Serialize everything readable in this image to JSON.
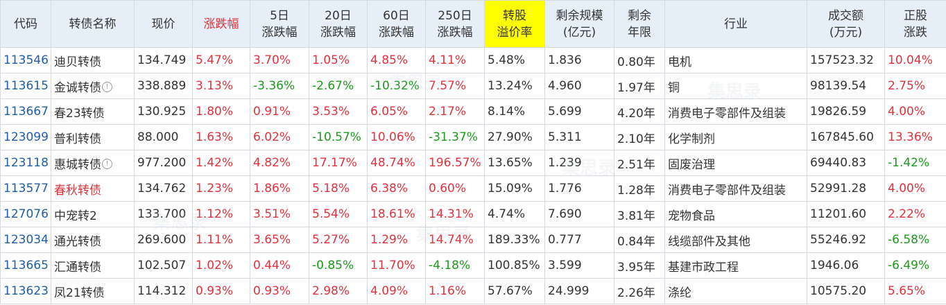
{
  "header": {
    "code": "代码",
    "name": "转债名称",
    "price": "现价",
    "change": "涨跌幅",
    "d5": [
      "5日",
      "涨跌幅"
    ],
    "d20": [
      "20日",
      "涨跌幅"
    ],
    "d60": [
      "60日",
      "涨跌幅"
    ],
    "d250": [
      "250日",
      "涨跌幅"
    ],
    "premium": [
      "转股",
      "溢价率"
    ],
    "remain_size": [
      "剩余规模",
      "(亿元)"
    ],
    "remain_years": [
      "剩余",
      "年限"
    ],
    "industry": "行业",
    "turnover": [
      "成交额",
      "(万元)"
    ],
    "stock_change": [
      "正股",
      "涨跌"
    ]
  },
  "colors": {
    "up": "#e3313c",
    "down": "#1b9a1b",
    "code": "#1f5da8",
    "highlight": "#ffff00",
    "header_bg": "#e6eef8"
  },
  "watermark": "集思录",
  "rows": [
    {
      "code": "113546",
      "name": "迪贝转债",
      "info": false,
      "name_red": false,
      "price": "134.749",
      "change": "5.47%",
      "d5": "3.70%",
      "d20": "1.05%",
      "d60": "4.85%",
      "d250": "4.11%",
      "premium": "5.48%",
      "remain_size": "1.836",
      "remain_years": "0.80年",
      "industry": "电机",
      "turnover": "157523.32",
      "stock_change": "10.04%"
    },
    {
      "code": "113615",
      "name": "金诚转债",
      "info": true,
      "name_red": false,
      "price": "338.889",
      "change": "3.13%",
      "d5": "-3.36%",
      "d20": "-2.67%",
      "d60": "-10.32%",
      "d250": "7.57%",
      "premium": "13.24%",
      "remain_size": "4.960",
      "remain_years": "1.97年",
      "industry": "铜",
      "turnover": "98139.54",
      "stock_change": "2.75%"
    },
    {
      "code": "113667",
      "name": "春23转债",
      "info": false,
      "name_red": false,
      "price": "130.925",
      "change": "1.80%",
      "d5": "0.91%",
      "d20": "3.53%",
      "d60": "6.05%",
      "d250": "2.17%",
      "premium": "8.14%",
      "remain_size": "5.699",
      "remain_years": "4.20年",
      "industry": "消费电子零部件及组装",
      "turnover": "19826.59",
      "stock_change": "4.00%"
    },
    {
      "code": "123099",
      "name": "普利转债",
      "info": false,
      "name_red": false,
      "price": "88.000",
      "change": "1.63%",
      "d5": "6.02%",
      "d20": "-10.57%",
      "d60": "10.06%",
      "d250": "-31.37%",
      "premium": "27.90%",
      "remain_size": "5.311",
      "remain_years": "2.10年",
      "industry": "化学制剂",
      "turnover": "167845.60",
      "stock_change": "13.36%"
    },
    {
      "code": "123118",
      "name": "惠城转债",
      "info": true,
      "name_red": false,
      "price": "977.200",
      "change": "1.42%",
      "d5": "4.82%",
      "d20": "17.17%",
      "d60": "48.74%",
      "d250": "196.57%",
      "premium": "13.65%",
      "remain_size": "1.239",
      "remain_years": "2.51年",
      "industry": "固废治理",
      "turnover": "69440.83",
      "stock_change": "-1.42%"
    },
    {
      "code": "113577",
      "name": "春秋转债",
      "info": false,
      "name_red": true,
      "price": "134.762",
      "change": "1.23%",
      "d5": "1.86%",
      "d20": "5.18%",
      "d60": "6.38%",
      "d250": "0.60%",
      "premium": "15.09%",
      "remain_size": "1.776",
      "remain_years": "1.28年",
      "industry": "消费电子零部件及组装",
      "turnover": "52991.28",
      "stock_change": "4.00%"
    },
    {
      "code": "127076",
      "name": "中宠转2",
      "info": false,
      "name_red": false,
      "price": "133.700",
      "change": "1.12%",
      "d5": "3.51%",
      "d20": "5.54%",
      "d60": "18.61%",
      "d250": "14.31%",
      "premium": "4.74%",
      "remain_size": "7.690",
      "remain_years": "3.81年",
      "industry": "宠物食品",
      "turnover": "11201.60",
      "stock_change": "2.22%"
    },
    {
      "code": "123034",
      "name": "通光转债",
      "info": false,
      "name_red": false,
      "price": "269.600",
      "change": "1.11%",
      "d5": "3.65%",
      "d20": "5.27%",
      "d60": "1.29%",
      "d250": "14.74%",
      "premium": "189.33%",
      "remain_size": "0.777",
      "remain_years": "0.84年",
      "industry": "线缆部件及其他",
      "turnover": "55246.92",
      "stock_change": "-6.58%"
    },
    {
      "code": "113665",
      "name": "汇通转债",
      "info": false,
      "name_red": false,
      "price": "102.507",
      "change": "1.02%",
      "d5": "0.44%",
      "d20": "-0.85%",
      "d60": "11.70%",
      "d250": "-4.18%",
      "premium": "100.85%",
      "remain_size": "3.599",
      "remain_years": "3.95年",
      "industry": "基建市政工程",
      "turnover": "1946.06",
      "stock_change": "-6.49%"
    },
    {
      "code": "113623",
      "name": "凤21转债",
      "info": false,
      "name_red": false,
      "price": "114.312",
      "change": "0.93%",
      "d5": "0.93%",
      "d20": "2.98%",
      "d60": "4.09%",
      "d250": "1.16%",
      "premium": "57.67%",
      "remain_size": "24.999",
      "remain_years": "2.26年",
      "industry": "涤纶",
      "turnover": "10575.20",
      "stock_change": "5.65%"
    }
  ]
}
